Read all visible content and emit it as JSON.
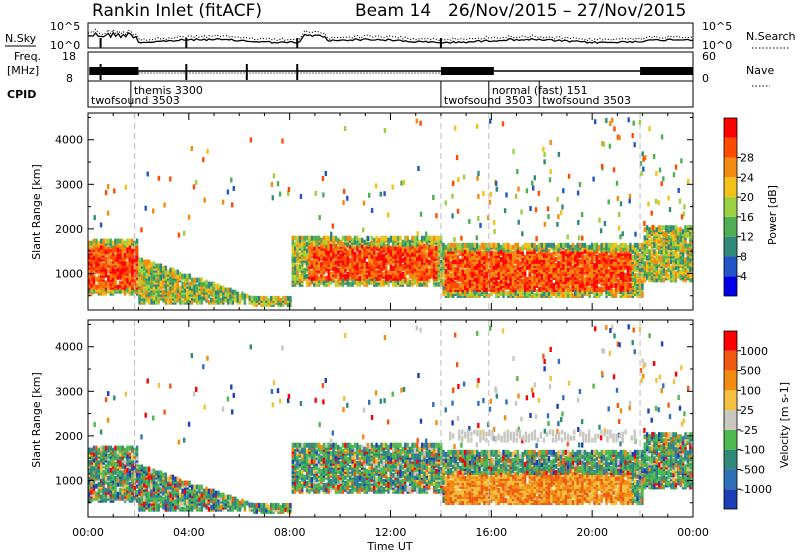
{
  "header": {
    "site": "Rankin Inlet (fitACF)",
    "beam_label": "Beam 14",
    "date_range": "26/Nov/2015 – 27/Nov/2015"
  },
  "strip": {
    "nsky_label": "N.Sky",
    "nsky_ticks": [
      "10^5",
      "10^0"
    ],
    "nsearch_label": "N.Search",
    "nsearch_ticks": [
      "10^5",
      "10^0"
    ],
    "freq_label_1": "Freq.",
    "freq_label_2": "[MHz]",
    "freq_ticks": [
      "18",
      "8"
    ],
    "nave_label": "Nave",
    "nave_ticks": [
      "60",
      "0"
    ],
    "cpid_label": "CPID"
  },
  "cpid_segments": [
    {
      "label": "twofsound 3503",
      "start_h": 0.0,
      "row": 2
    },
    {
      "label": "themis 3300",
      "start_h": 1.7,
      "row": 1
    },
    {
      "label": "twofsound 3503",
      "start_h": 14.0,
      "row": 2
    },
    {
      "label": "normal (fast) 151",
      "start_h": 15.9,
      "row": 1
    },
    {
      "label": "twofsound 3503",
      "start_h": 17.9,
      "row": 2
    }
  ],
  "chart_data": [
    {
      "type": "heatmap",
      "quantity": "Power",
      "ylabel": "Slant Range [km]",
      "xlabel": "",
      "colorbar_label": "Power [dB]",
      "x_range_hours": [
        0,
        24
      ],
      "ylim": [
        180,
        4600
      ],
      "y_ticks": [
        1000,
        2000,
        3000,
        4000
      ],
      "colorbar_ticks": [
        4,
        8,
        12,
        16,
        20,
        24,
        28
      ],
      "colorbar_range": [
        0,
        32
      ],
      "colors": [
        "#0000e6",
        "#2255c8",
        "#2f8a7a",
        "#4fae54",
        "#9bd140",
        "#f2c21a",
        "#f28b10",
        "#ff4a00",
        "#ff0000"
      ]
    },
    {
      "type": "heatmap",
      "quantity": "Velocity",
      "ylabel": "Slant Range [km]",
      "xlabel": "Time UT",
      "colorbar_label": "Velocity [m s-1]",
      "x_range_hours": [
        0,
        24
      ],
      "ylim": [
        180,
        4600
      ],
      "y_ticks": [
        1000,
        2000,
        3000,
        4000
      ],
      "colorbar_ticks": [
        "1000",
        "500",
        "100",
        "25",
        "-25",
        "-100",
        "-500",
        "-1000"
      ],
      "colors": [
        "#1c3fb5",
        "#2f6fb8",
        "#2f8a7a",
        "#4fb84f",
        "#c8c8c0",
        "#f5c040",
        "#f28b10",
        "#f05a10",
        "#ff0000"
      ]
    }
  ],
  "time_axis": {
    "tick_labels": [
      "00:00",
      "04:00",
      "08:00",
      "12:00",
      "16:00",
      "20:00",
      "00:00"
    ]
  }
}
